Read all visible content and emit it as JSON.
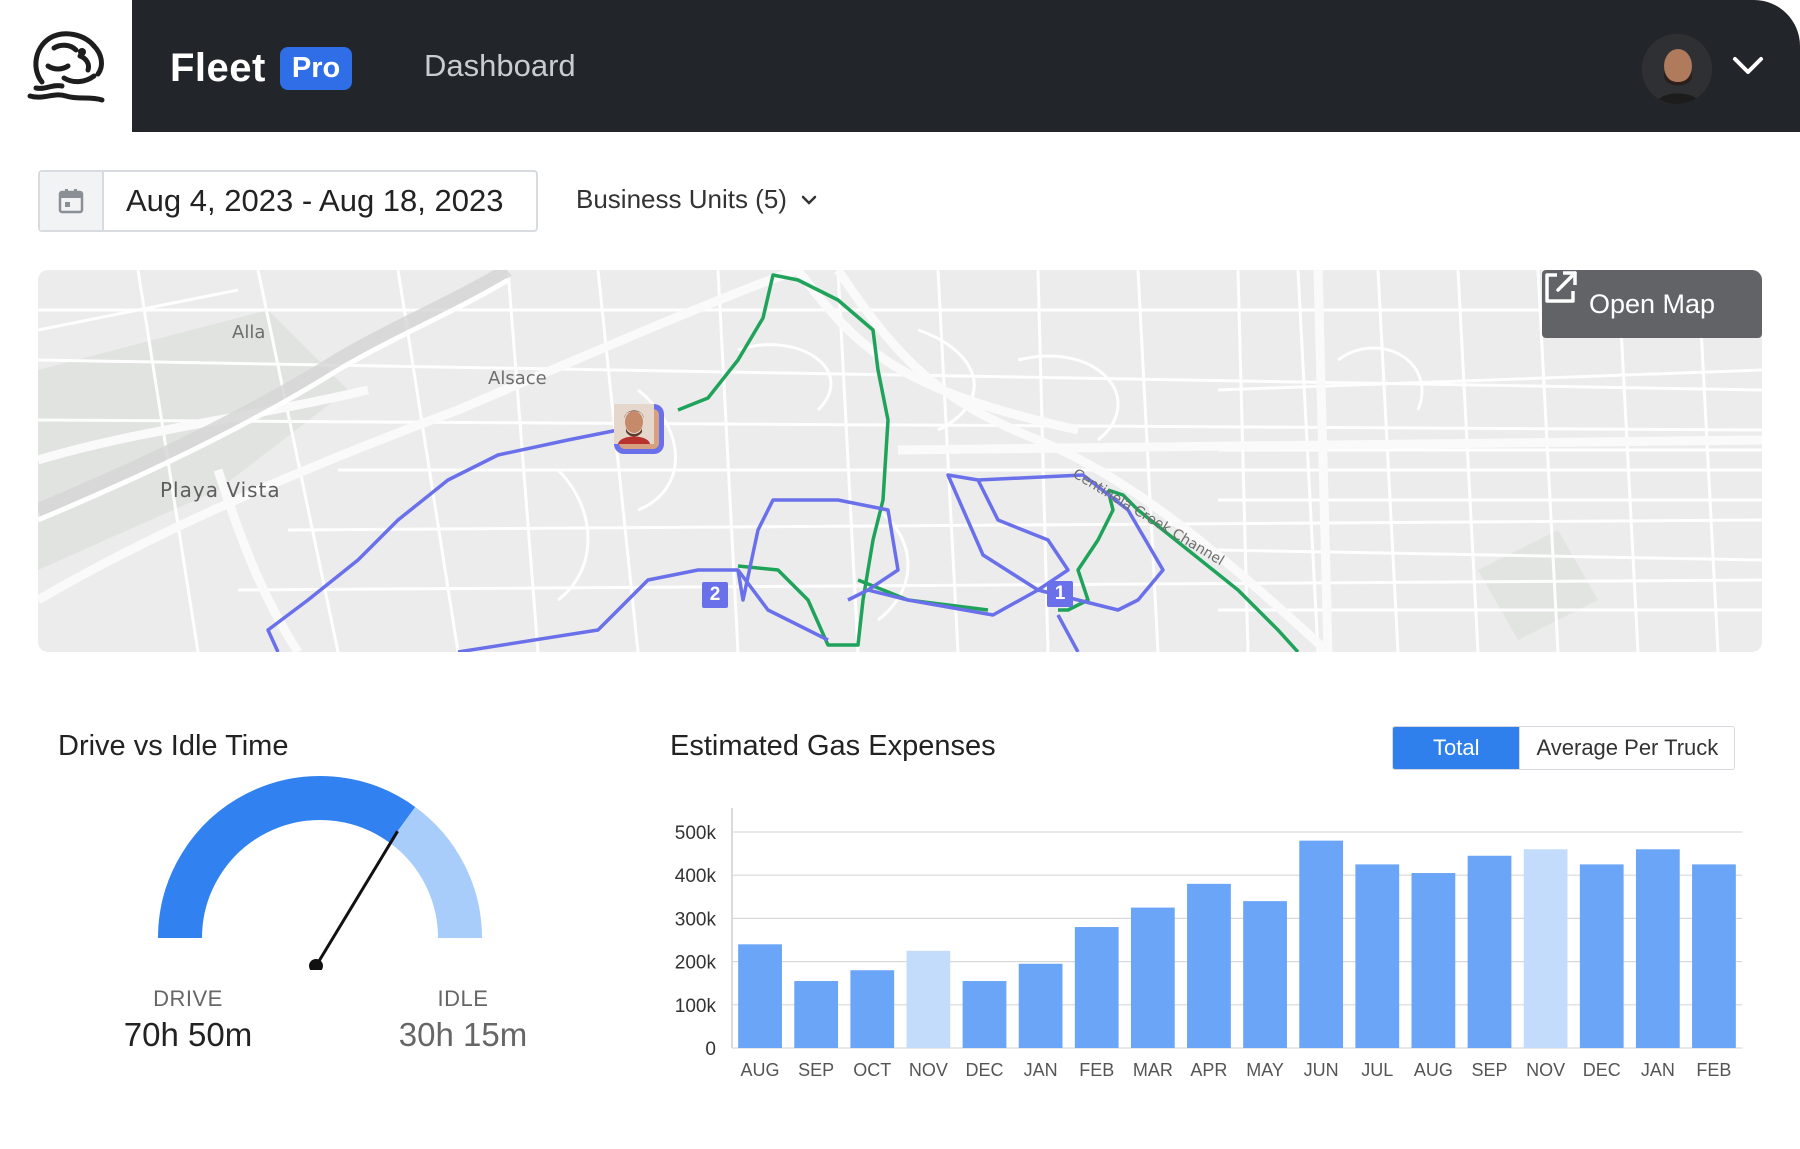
{
  "header": {
    "brand_name": "Fleet",
    "brand_badge": "Pro",
    "nav_item": "Dashboard",
    "logo_icon": "mascot-logo-icon",
    "account_icon": "chevron-down-icon"
  },
  "filters": {
    "date_range": "Aug 4, 2023 - Aug 18, 2023",
    "business_units": "Business Units (5)"
  },
  "map": {
    "open_map_label": "Open Map",
    "labels": {
      "alla": "Alla",
      "alsace": "Alsace",
      "playa_vista": "Playa Vista",
      "channel": "Centinela Creek Channel"
    },
    "stops": [
      "1",
      "2"
    ],
    "route_colors": {
      "blue": "#6a70ea",
      "green": "#1fa25a"
    }
  },
  "drive_idle": {
    "title": "Drive vs Idle Time",
    "drive_label": "DRIVE",
    "drive_value": "70h 50m",
    "idle_label": "IDLE",
    "idle_value": "30h 15m",
    "drive_fraction": 0.7,
    "colors": {
      "drive": "#3182f0",
      "idle": "#a8cdfb"
    }
  },
  "gas": {
    "title": "Estimated Gas Expenses",
    "toggle": {
      "total": "Total",
      "average": "Average Per Truck"
    }
  },
  "chart_data": {
    "type": "bar",
    "title": "Estimated Gas Expenses",
    "categories": [
      "AUG",
      "SEP",
      "OCT",
      "NOV",
      "DEC",
      "JAN",
      "FEB",
      "MAR",
      "APR",
      "MAY",
      "JUN",
      "JUL",
      "AUG",
      "SEP",
      "NOV",
      "DEC",
      "JAN",
      "FEB"
    ],
    "values": [
      240000,
      155000,
      180000,
      225000,
      155000,
      195000,
      280000,
      325000,
      380000,
      340000,
      480000,
      425000,
      405000,
      445000,
      460000,
      425000,
      460000,
      425000
    ],
    "highlighted": [
      false,
      false,
      false,
      true,
      false,
      false,
      false,
      false,
      false,
      false,
      false,
      false,
      false,
      false,
      true,
      false,
      false,
      false
    ],
    "y_ticks": [
      "0",
      "100k",
      "200k",
      "300k",
      "400k",
      "500k"
    ],
    "ylim": [
      0,
      500000
    ],
    "colors": {
      "bar": "#6aa5f7",
      "bar_light": "#c3dcfc",
      "grid": "#d9d9d9"
    }
  }
}
